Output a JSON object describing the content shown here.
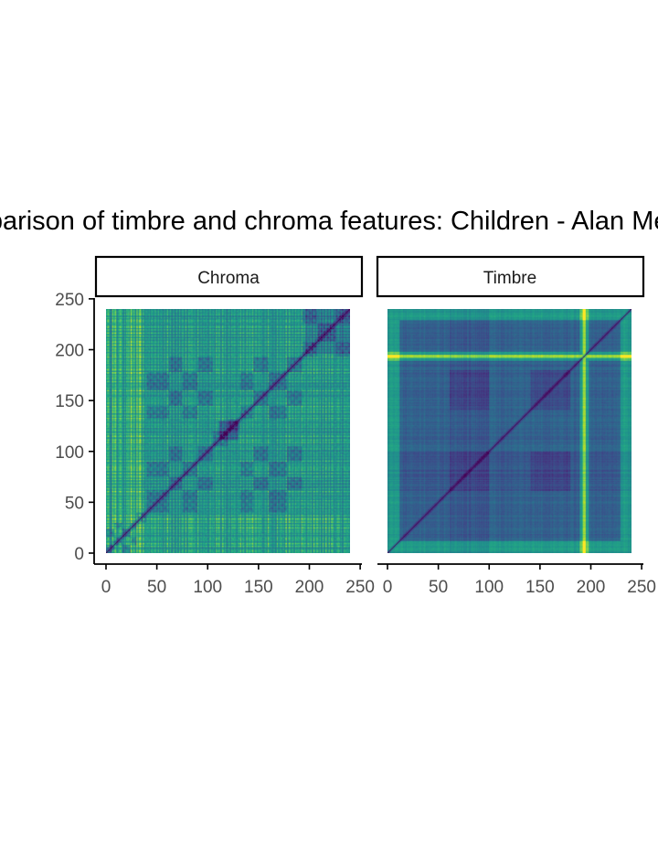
{
  "chart_data": {
    "type": "heatmap",
    "title": "Comparison of timbre and chroma features: Children - Alan Menken",
    "xlabel": "",
    "ylabel": "",
    "colormap": "viridis",
    "n": 240,
    "xlim": [
      0,
      250
    ],
    "ylim": [
      0,
      250
    ],
    "x_ticks": [
      0,
      50,
      100,
      150,
      200,
      250
    ],
    "y_ticks": [
      0,
      50,
      100,
      150,
      200,
      250
    ],
    "panels": [
      {
        "label": "Chroma",
        "description": "self-similarity matrix of chroma features, dark diagonal, block-checker texture"
      },
      {
        "label": "Timbre",
        "description": "self-similarity matrix of timbre features, bright stripe near index 193"
      }
    ]
  }
}
